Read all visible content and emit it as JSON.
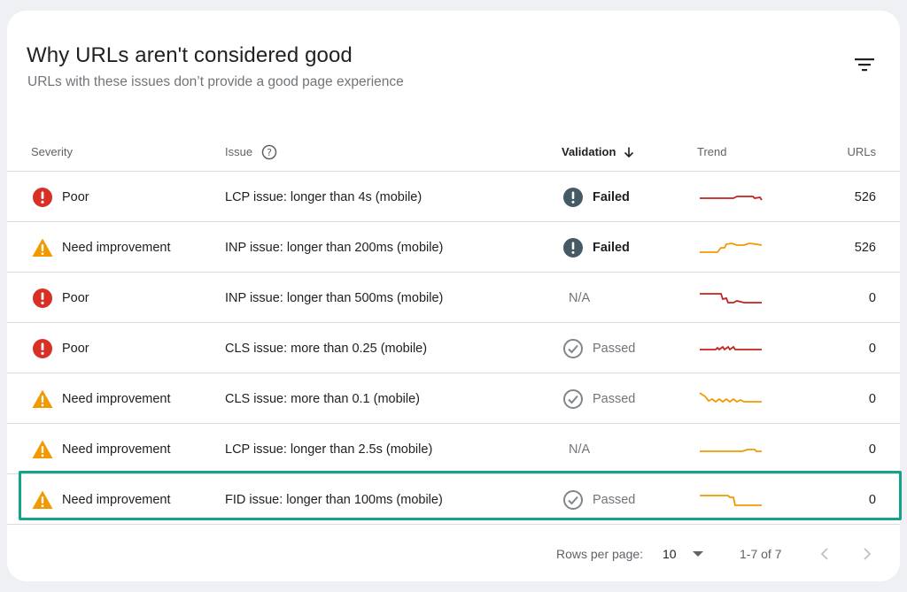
{
  "header": {
    "title": "Why URLs aren't considered good",
    "subtitle": "URLs with these issues don’t provide a good page experience"
  },
  "columns": {
    "severity": "Severity",
    "issue": "Issue",
    "validation": "Validation",
    "trend": "Trend",
    "urls": "URLs"
  },
  "colors": {
    "poor": "#d93025",
    "need_improvement": "#f29900",
    "failed": "#455a64",
    "passed": "#80868b",
    "trend_poor": "#c5221f",
    "trend_need": "#f29900",
    "highlight": "#14a38a"
  },
  "rows": [
    {
      "severity": "Poor",
      "severity_type": "poor",
      "issue": "LCP issue: longer than 4s (mobile)",
      "validation": "Failed",
      "validation_type": "failed",
      "trend_type": "poor",
      "urls": "526"
    },
    {
      "severity": "Need improvement",
      "severity_type": "need",
      "issue": "INP issue: longer than 200ms (mobile)",
      "validation": "Failed",
      "validation_type": "failed",
      "trend_type": "need",
      "urls": "526"
    },
    {
      "severity": "Poor",
      "severity_type": "poor",
      "issue": "INP issue: longer than 500ms (mobile)",
      "validation": "N/A",
      "validation_type": "na",
      "trend_type": "poor",
      "urls": "0"
    },
    {
      "severity": "Poor",
      "severity_type": "poor",
      "issue": "CLS issue: more than 0.25 (mobile)",
      "validation": "Passed",
      "validation_type": "passed",
      "trend_type": "poor",
      "urls": "0"
    },
    {
      "severity": "Need improvement",
      "severity_type": "need",
      "issue": "CLS issue: more than 0.1 (mobile)",
      "validation": "Passed",
      "validation_type": "passed",
      "trend_type": "need",
      "urls": "0"
    },
    {
      "severity": "Need improvement",
      "severity_type": "need",
      "issue": "LCP issue: longer than 2.5s (mobile)",
      "validation": "N/A",
      "validation_type": "na",
      "trend_type": "need",
      "urls": "0"
    },
    {
      "severity": "Need improvement",
      "severity_type": "need",
      "issue": "FID issue: longer than 100ms (mobile)",
      "validation": "Passed",
      "validation_type": "passed",
      "trend_type": "need",
      "urls": "0",
      "highlighted": true
    }
  ],
  "footer": {
    "rows_per_page_label": "Rows per page:",
    "rows_per_page_value": "10",
    "range": "1-7 of 7"
  }
}
